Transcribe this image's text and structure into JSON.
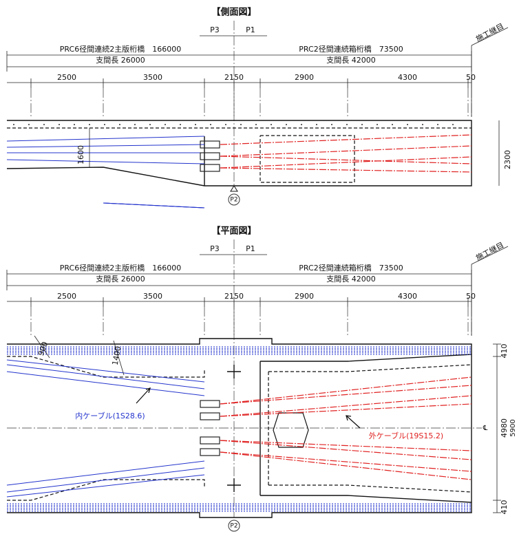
{
  "side_view": {
    "title": "【側面図】",
    "pier_left": "P3",
    "pier_right": "P1",
    "girder_left": "PRC6径間連続2主版桁橋　166000",
    "girder_right": "PRC2径間連続箱桁橋　73500",
    "span_left": "支間長 26000",
    "span_right": "支間長 42000",
    "construction_joint": "施工継目",
    "dimensions": [
      "2500",
      "3500",
      "2150",
      "2900",
      "4300",
      "50"
    ],
    "height_left": "1600",
    "height_right": "2300",
    "pier_center": "P2"
  },
  "plan_view": {
    "title": "【平面図】",
    "pier_left": "P3",
    "pier_right": "P1",
    "girder_left": "PRC6径間連続2主版桁橋　166000",
    "girder_right": "PRC2径間連続箱桁橋　73500",
    "span_left": "支間長 26000",
    "span_right": "支間長 42000",
    "construction_joint": "施工継目",
    "dimensions": [
      "2500",
      "3500",
      "2150",
      "2900",
      "4300",
      "50"
    ],
    "width_left": [
      "900",
      "1400"
    ],
    "widths_right": [
      "410",
      "4980",
      "5900",
      "410"
    ],
    "centerline": "℄",
    "inner_cable": "内ケーブル(1S28.6)",
    "outer_cable": "外ケーブル(19S15.2)",
    "pier_center": "P2"
  }
}
